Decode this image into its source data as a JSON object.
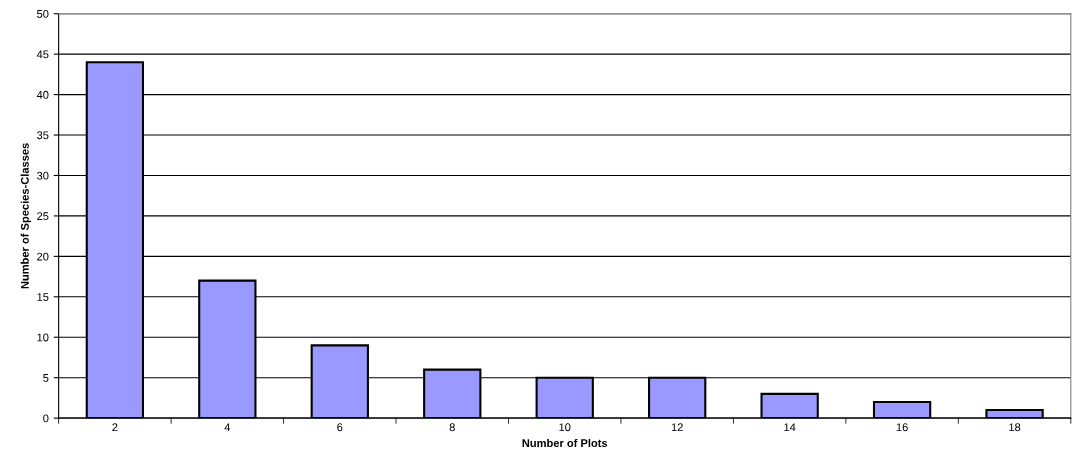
{
  "chart_data": {
    "type": "bar",
    "xlabel": "Number of Plots",
    "ylabel": "Number of Species-Classes",
    "categories": [
      "2",
      "4",
      "6",
      "8",
      "10",
      "12",
      "14",
      "16",
      "18"
    ],
    "values": [
      44,
      17,
      9,
      6,
      5,
      5,
      3,
      2,
      1
    ],
    "color": "#9999ff",
    "ylim": [
      0,
      50
    ],
    "yticks": [
      0,
      5,
      10,
      15,
      20,
      25,
      30,
      35,
      40,
      45,
      50
    ],
    "grid": "y",
    "legend": false
  }
}
